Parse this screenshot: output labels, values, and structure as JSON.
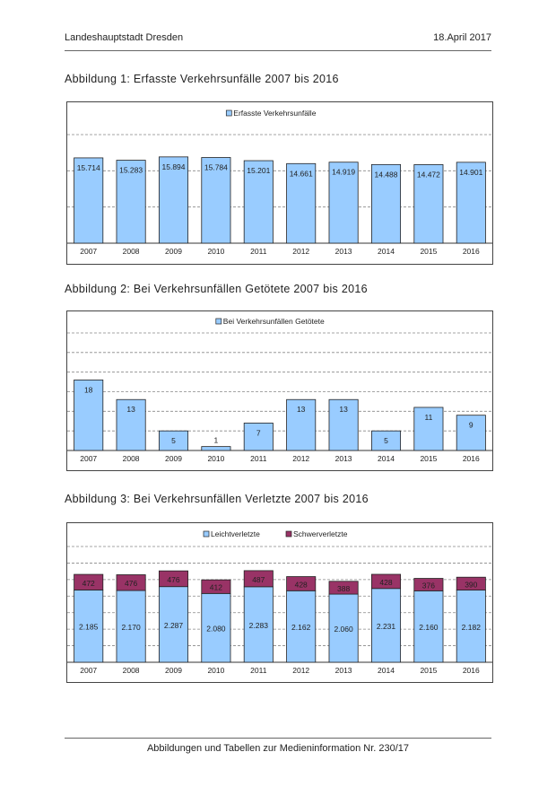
{
  "header": {
    "left": "Landeshauptstadt Dresden",
    "right": "18.April 2017"
  },
  "footer": "Abbildungen und Tabellen zur Medieninformation Nr. 230/17",
  "charts": [
    {
      "title": "Abbildung 1: Erfasste Verkehrsunfälle 2007 bis 2016"
    },
    {
      "title": "Abbildung 2: Bei Verkehrsunfällen Getötete 2007 bis 2016"
    },
    {
      "title": "Abbildung 3: Bei Verkehrsunfällen Verletzte 2007 bis 2016"
    }
  ],
  "colors": {
    "bar_blue": "#99ccff",
    "bar_maroon": "#993366",
    "grid": "#888888"
  },
  "chart_data": [
    {
      "type": "bar",
      "categories": [
        "2007",
        "2008",
        "2009",
        "2010",
        "2011",
        "2012",
        "2013",
        "2014",
        "2015",
        "2016"
      ],
      "series": [
        {
          "name": "Erfasste Verkehrsunfälle",
          "values": [
            15714,
            15283,
            15894,
            15784,
            15201,
            14661,
            14919,
            14488,
            14472,
            14901
          ],
          "labels": [
            "15.714",
            "15.283",
            "15.894",
            "15.784",
            "15.201",
            "14.661",
            "14.919",
            "14.488",
            "14.472",
            "14.901"
          ]
        }
      ],
      "ylim": [
        0,
        20000
      ],
      "grid": true,
      "legend": "top-center"
    },
    {
      "type": "bar",
      "categories": [
        "2007",
        "2008",
        "2009",
        "2010",
        "2011",
        "2012",
        "2013",
        "2014",
        "2015",
        "2016"
      ],
      "series": [
        {
          "name": "Bei Verkehrsunfällen Getötete",
          "values": [
            18,
            13,
            5,
            1,
            7,
            13,
            13,
            5,
            11,
            9
          ],
          "labels": [
            "18",
            "13",
            "5",
            "1",
            "7",
            "13",
            "13",
            "5",
            "11",
            "9"
          ]
        }
      ],
      "ylim": [
        0,
        30
      ],
      "grid": true,
      "legend": "top-center"
    },
    {
      "type": "bar",
      "stacked": true,
      "categories": [
        "2007",
        "2008",
        "2009",
        "2010",
        "2011",
        "2012",
        "2013",
        "2014",
        "2015",
        "2016"
      ],
      "series": [
        {
          "name": "Leichtverletzte",
          "values": [
            2185,
            2170,
            2287,
            2080,
            2283,
            2162,
            2060,
            2231,
            2160,
            2182
          ],
          "labels": [
            "2.185",
            "2.170",
            "2.287",
            "2.080",
            "2.283",
            "2.162",
            "2.060",
            "2.231",
            "2.160",
            "2.182"
          ]
        },
        {
          "name": "Schwerverletzte",
          "values": [
            472,
            476,
            476,
            412,
            487,
            428,
            388,
            428,
            376,
            390
          ],
          "labels": [
            "472",
            "476",
            "476",
            "412",
            "487",
            "428",
            "388",
            "428",
            "376",
            "390"
          ]
        }
      ],
      "ylim": [
        0,
        3500
      ],
      "grid": true,
      "legend": "top-center"
    }
  ]
}
